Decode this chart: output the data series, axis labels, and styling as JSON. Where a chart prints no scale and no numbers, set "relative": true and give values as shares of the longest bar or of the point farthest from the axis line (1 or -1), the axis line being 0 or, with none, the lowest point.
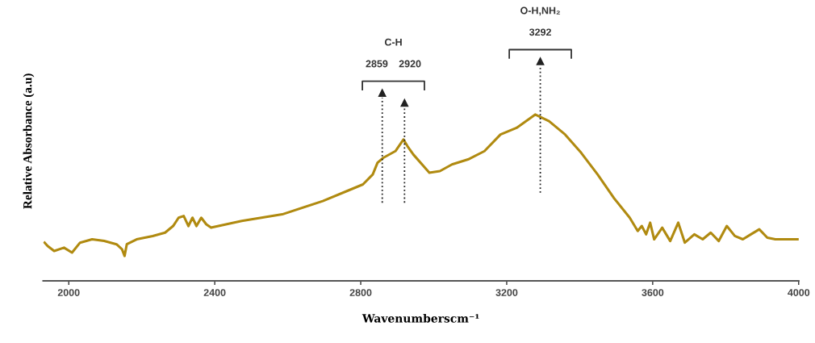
{
  "chart_data": {
    "type": "line",
    "relative": true,
    "xlabel": "Wavenumberscm⁻¹",
    "ylabel": "Relative Absorbance (a.u)",
    "x": [
      1934,
      1942,
      1960,
      1987,
      2009,
      2031,
      2064,
      2097,
      2131,
      2146,
      2153,
      2159,
      2186,
      2230,
      2264,
      2286,
      2301,
      2315,
      2328,
      2339,
      2350,
      2363,
      2377,
      2390,
      2474,
      2585,
      2696,
      2762,
      2806,
      2833,
      2846,
      2862,
      2895,
      2917,
      2928,
      2944,
      2972,
      2988,
      3017,
      3050,
      3094,
      3139,
      3183,
      3227,
      3278,
      3316,
      3360,
      3404,
      3449,
      3493,
      3537,
      3559,
      3570,
      3582,
      3593,
      3604,
      3626,
      3648,
      3670,
      3688,
      3714,
      3737,
      3759,
      3781,
      3803,
      3825,
      3847,
      3869,
      3892,
      3914,
      3936,
      3969,
      4000
    ],
    "series": [
      {
        "color": "#b08a10",
        "values": [
          0.23,
          0.21,
          0.18,
          0.2,
          0.17,
          0.23,
          0.25,
          0.24,
          0.22,
          0.19,
          0.15,
          0.22,
          0.25,
          0.27,
          0.29,
          0.33,
          0.38,
          0.39,
          0.33,
          0.38,
          0.33,
          0.38,
          0.34,
          0.32,
          0.36,
          0.4,
          0.48,
          0.54,
          0.58,
          0.64,
          0.71,
          0.74,
          0.78,
          0.85,
          0.81,
          0.76,
          0.69,
          0.65,
          0.66,
          0.7,
          0.73,
          0.78,
          0.88,
          0.92,
          1,
          0.96,
          0.88,
          0.77,
          0.64,
          0.5,
          0.38,
          0.3,
          0.33,
          0.28,
          0.35,
          0.25,
          0.32,
          0.24,
          0.35,
          0.23,
          0.28,
          0.25,
          0.29,
          0.24,
          0.33,
          0.27,
          0.25,
          0.28,
          0.31,
          0.26,
          0.25,
          0.25,
          0.25
        ]
      }
    ],
    "xlim": [
      1930,
      4000
    ],
    "xticks": [
      2000,
      2400,
      2800,
      3200,
      3600,
      4000
    ],
    "ref_lines": [
      {
        "axis": "x",
        "value": 2859,
        "color": "#222222",
        "line_style": "dotted"
      },
      {
        "axis": "x",
        "value": 2920,
        "color": "#222222",
        "line_style": "dotted"
      },
      {
        "axis": "x",
        "value": 3292,
        "color": "#222222",
        "line_style": "dotted"
      }
    ],
    "annotations": [
      "2859",
      "2920",
      "3292",
      "C-H",
      "O-H,NH₂"
    ],
    "grid": false,
    "legend": false,
    "marker": "none",
    "line_style": "solid"
  }
}
